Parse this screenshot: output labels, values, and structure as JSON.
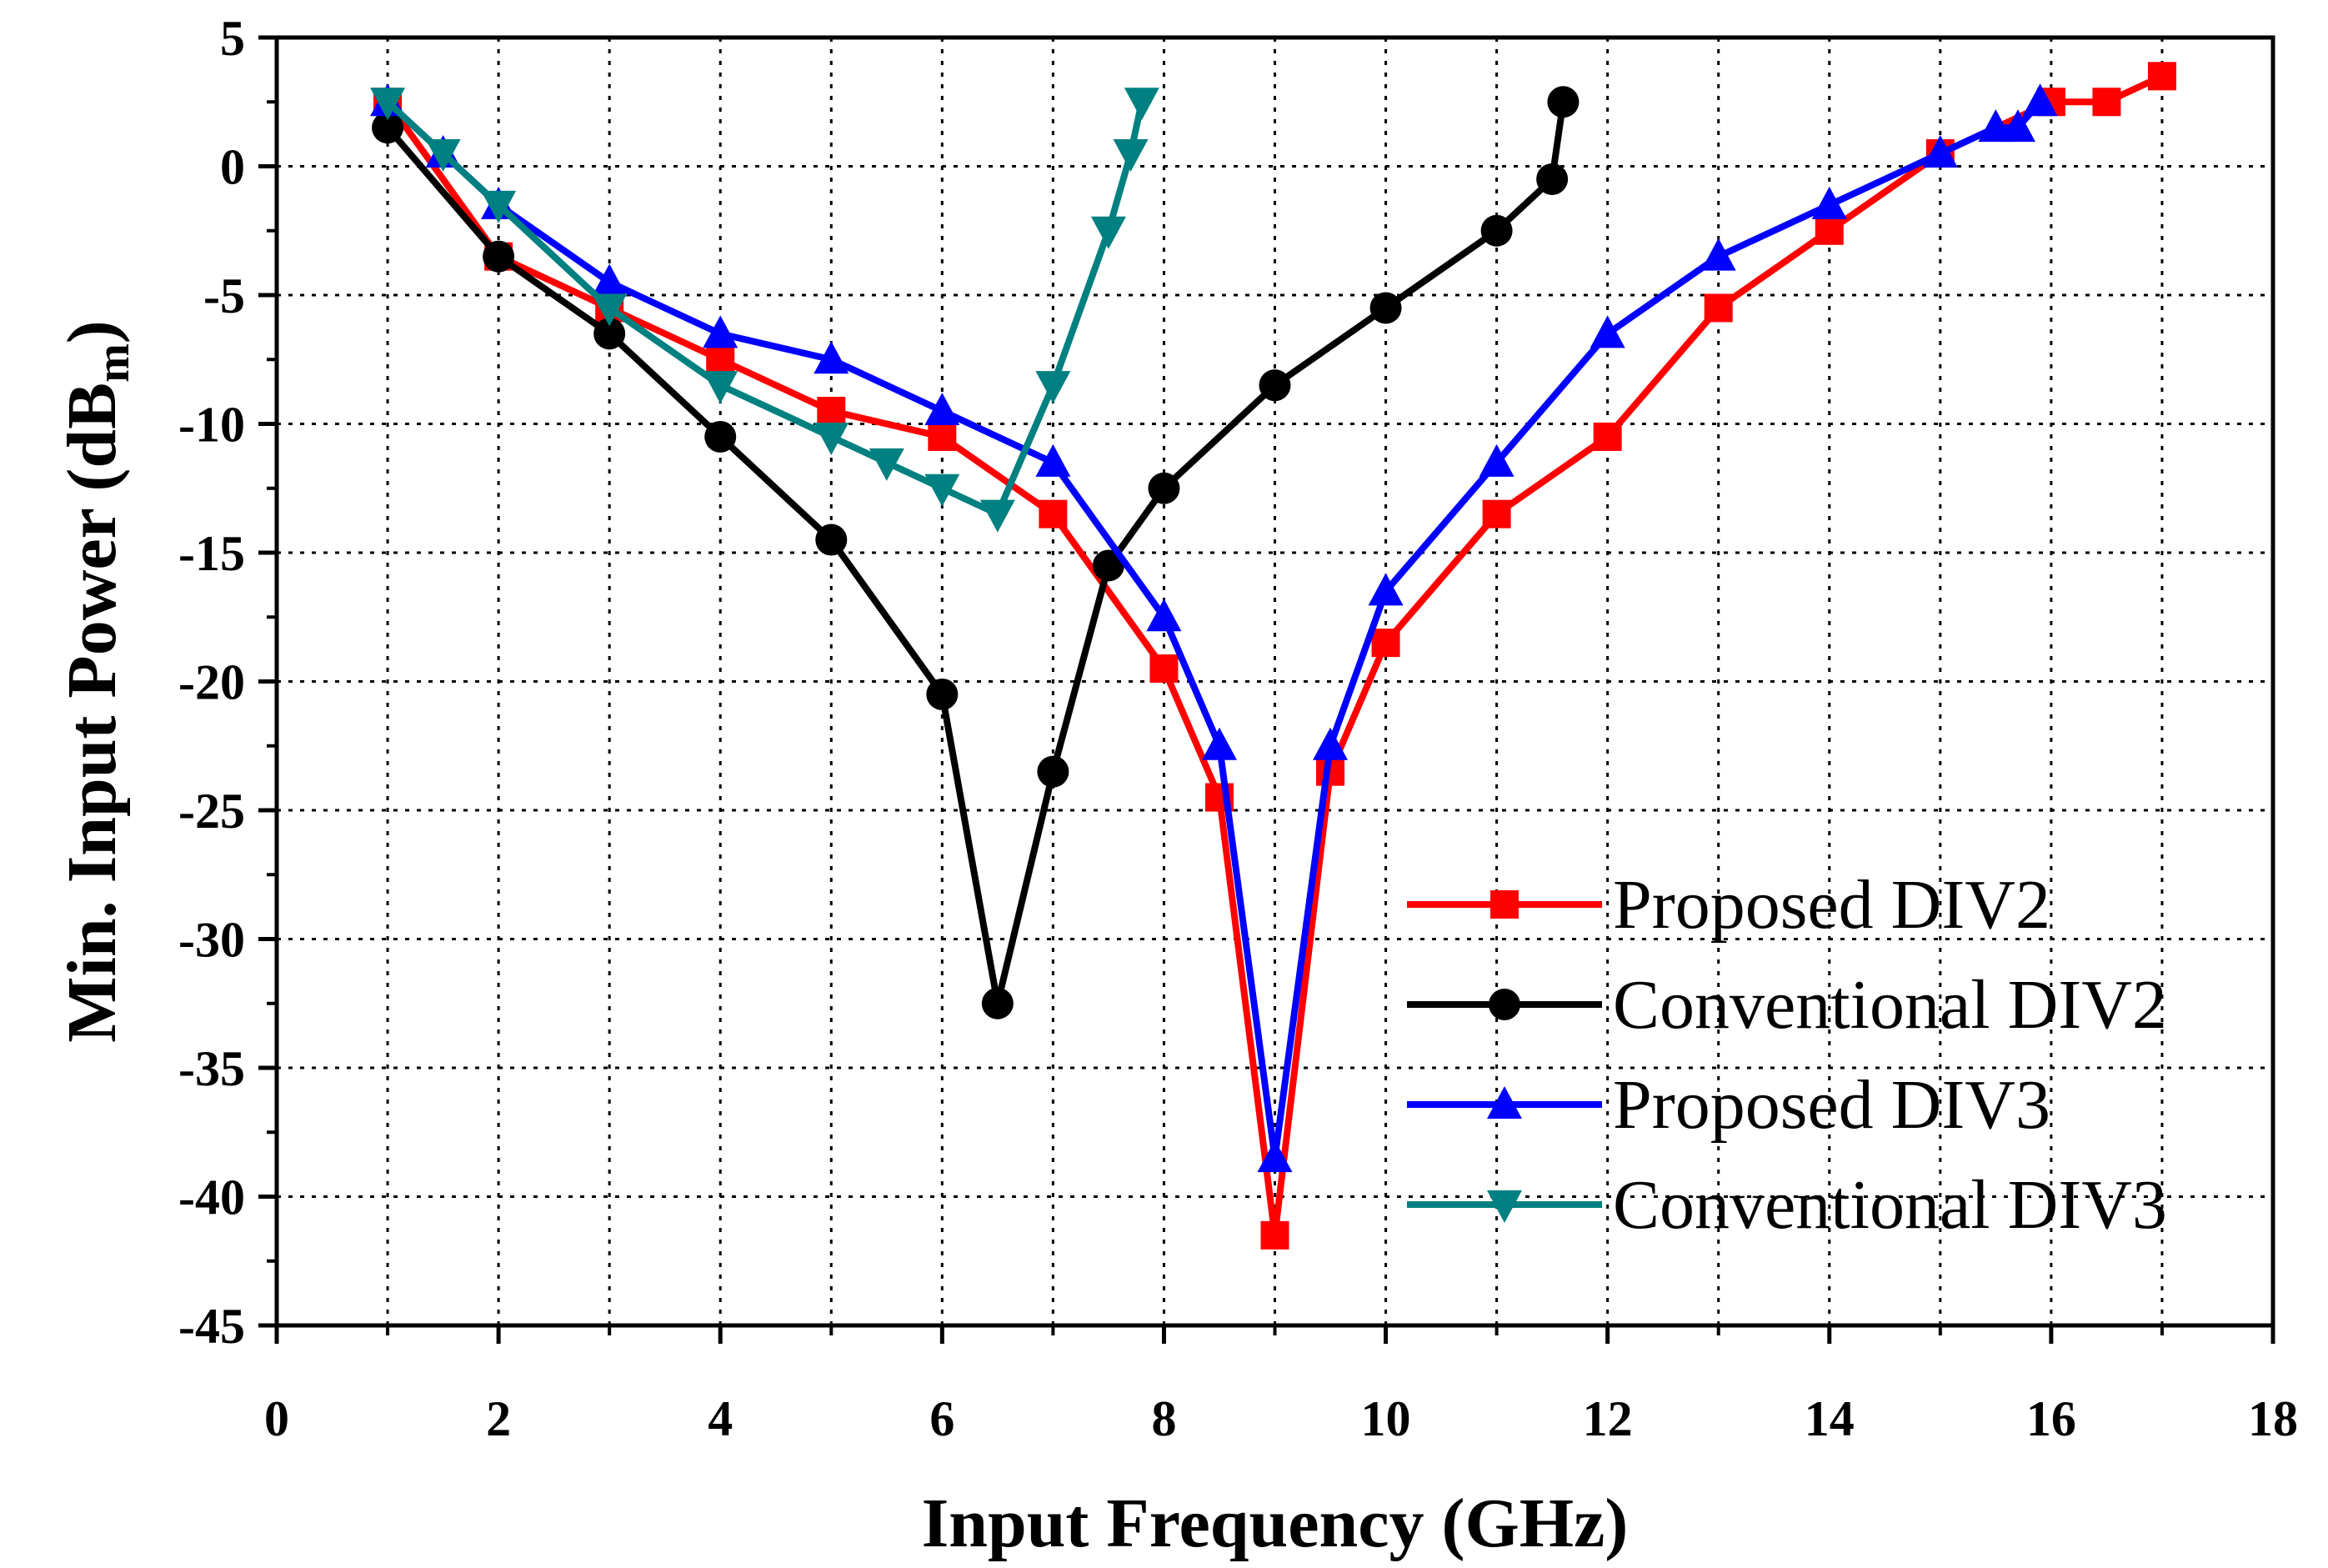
{
  "chart_data": {
    "type": "line",
    "title": "",
    "xlabel": "Input Frequency (GHz)",
    "ylabel": "Min. Input Power (dB",
    "ylabel_sub": "m",
    "ylabel_close": ")",
    "xlim": [
      0,
      18
    ],
    "ylim": [
      -45,
      5
    ],
    "xticks": [
      0,
      2,
      4,
      6,
      8,
      10,
      12,
      14,
      16,
      18
    ],
    "yticks": [
      5,
      0,
      -5,
      -10,
      -15,
      -20,
      -25,
      -30,
      -35,
      -40,
      -45
    ],
    "grid": true,
    "legend_position": "bottom-right",
    "series": [
      {
        "name": "Proposed DIV2",
        "color": "#ff0000",
        "marker": "square",
        "x": [
          1,
          2,
          3,
          4,
          5,
          6,
          7,
          8,
          8.5,
          9,
          9.5,
          10,
          11,
          12,
          13,
          14,
          15,
          16,
          16.5,
          17
        ],
        "y": [
          2.5,
          -3.5,
          -5.5,
          -7.5,
          -9.5,
          -10.5,
          -13.5,
          -19.5,
          -24.5,
          -41.5,
          -23.5,
          -18.5,
          -13.5,
          -10.5,
          -5.5,
          -2.5,
          0.5,
          2.5,
          2.5,
          3.5
        ]
      },
      {
        "name": "Conventional DIV2",
        "color": "#000000",
        "marker": "circle",
        "x": [
          1,
          2,
          3,
          4,
          5,
          6,
          6.5,
          7,
          7.5,
          8,
          9,
          10,
          11,
          11.5,
          11.6
        ],
        "y": [
          1.5,
          -3.5,
          -6.5,
          -10.5,
          -14.5,
          -20.5,
          -32.5,
          -23.5,
          -15.5,
          -12.5,
          -8.5,
          -5.5,
          -2.5,
          -0.5,
          2.5
        ]
      },
      {
        "name": "Proposed DIV3",
        "color": "#0000ff",
        "marker": "triangle-up",
        "x": [
          1,
          1.5,
          2,
          3,
          4,
          5,
          6,
          7,
          8,
          8.5,
          9,
          9.5,
          10,
          11,
          12,
          13,
          14,
          15,
          15.5,
          15.7,
          15.9
        ],
        "y": [
          2.5,
          0.5,
          -1.5,
          -4.5,
          -6.5,
          -7.5,
          -9.5,
          -11.5,
          -17.5,
          -22.5,
          -38.5,
          -22.5,
          -16.5,
          -11.5,
          -6.5,
          -3.5,
          -1.5,
          0.5,
          1.5,
          1.5,
          2.5
        ]
      },
      {
        "name": "Conventional DIV3",
        "color": "#008080",
        "marker": "triangle-down",
        "x": [
          1,
          1.5,
          2,
          3,
          4,
          5,
          5.5,
          6,
          6.5,
          7,
          7.5,
          7.7,
          7.8
        ],
        "y": [
          2.5,
          0.5,
          -1.5,
          -5.5,
          -8.5,
          -10.5,
          -11.5,
          -12.5,
          -13.5,
          -8.5,
          -2.5,
          0.5,
          2.5
        ]
      }
    ]
  }
}
